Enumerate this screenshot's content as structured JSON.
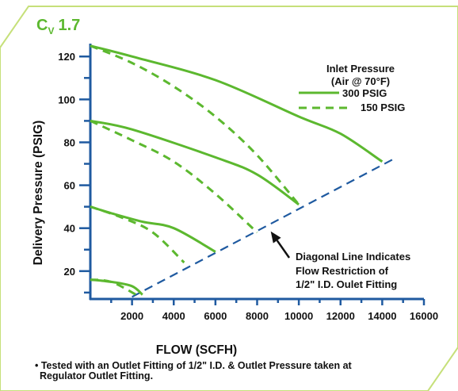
{
  "header": {
    "cv_symbol": "C",
    "cv_subscript": "V",
    "cv_value": "1.7"
  },
  "chart_data": {
    "type": "line",
    "title": "",
    "xlabel": "FLOW (SCFH)",
    "ylabel": "Delivery Pressure (PSIG)",
    "xlim": [
      0,
      16000
    ],
    "ylim": [
      7,
      126
    ],
    "x_ticks": [
      2000,
      4000,
      6000,
      8000,
      10000,
      12000,
      14000,
      16000
    ],
    "y_ticks": [
      20,
      40,
      60,
      80,
      100,
      120
    ],
    "grid": false,
    "legend": {
      "position": "top-right",
      "title_lines": [
        "Inlet Pressure",
        "(Air @ 70°F)"
      ],
      "entries": [
        {
          "label": "300 PSIG",
          "style": "solid"
        },
        {
          "label": "150 PSIG",
          "style": "dashed"
        }
      ]
    },
    "series": [
      {
        "name": "300 PSIG",
        "style": "solid",
        "color": "#5cb82f",
        "curve": 1,
        "points": [
          [
            0,
            125
          ],
          [
            2000,
            120
          ],
          [
            6000,
            109
          ],
          [
            10000,
            92
          ],
          [
            12000,
            84
          ],
          [
            14000,
            71
          ]
        ]
      },
      {
        "name": "300 PSIG",
        "style": "solid",
        "color": "#5cb82f",
        "curve": 2,
        "points": [
          [
            0,
            90
          ],
          [
            2000,
            86
          ],
          [
            6000,
            73
          ],
          [
            8000,
            65
          ],
          [
            10000,
            51
          ]
        ]
      },
      {
        "name": "300 PSIG",
        "style": "solid",
        "color": "#5cb82f",
        "curve": 3,
        "points": [
          [
            0,
            50
          ],
          [
            1000,
            47
          ],
          [
            2500,
            43
          ],
          [
            4000,
            40
          ],
          [
            6000,
            29
          ]
        ]
      },
      {
        "name": "300 PSIG",
        "style": "solid",
        "color": "#5cb82f",
        "curve": 4,
        "points": [
          [
            0,
            16
          ],
          [
            1000,
            15
          ],
          [
            2000,
            13
          ],
          [
            2500,
            9
          ]
        ]
      },
      {
        "name": "150 PSIG",
        "style": "dashed",
        "color": "#5cb82f",
        "curve": 1,
        "points": [
          [
            0,
            125
          ],
          [
            2000,
            117
          ],
          [
            4000,
            106
          ],
          [
            6000,
            92
          ],
          [
            8000,
            74
          ],
          [
            10000,
            51
          ]
        ]
      },
      {
        "name": "150 PSIG",
        "style": "dashed",
        "color": "#5cb82f",
        "curve": 2,
        "points": [
          [
            0,
            90
          ],
          [
            2000,
            81
          ],
          [
            4000,
            71
          ],
          [
            6000,
            56
          ],
          [
            8000,
            38
          ]
        ]
      },
      {
        "name": "150 PSIG",
        "style": "dashed",
        "color": "#5cb82f",
        "curve": 3,
        "points": [
          [
            0,
            50
          ],
          [
            1500,
            45
          ],
          [
            3000,
            38
          ],
          [
            4500,
            24
          ]
        ]
      },
      {
        "name": "150 PSIG",
        "style": "dashed",
        "color": "#5cb82f",
        "curve": 4,
        "points": [
          [
            0,
            16
          ],
          [
            1000,
            15
          ],
          [
            2200,
            9
          ]
        ]
      }
    ],
    "reference_line": {
      "style": "dashed",
      "color": "#1f5aa0",
      "points": [
        [
          2000,
          8
        ],
        [
          14500,
          72
        ]
      ],
      "annotation_lines": [
        "Diagonal Line Indicates",
        "Flow Restriction of",
        "1/2\" I.D. Oulet Fitting"
      ],
      "annotation_arrow_target": [
        8500,
        40
      ]
    }
  },
  "footnote": {
    "line1": "• Tested with an Outlet Fitting of 1/2\" I.D. & Outlet Pressure taken at",
    "line2": "Regulator Outlet Fitting."
  },
  "colors": {
    "green": "#5cb82f",
    "blue": "#1f5aa0",
    "frame": "#c6e07a",
    "axis": "#1f5aa0",
    "text": "#111111"
  }
}
